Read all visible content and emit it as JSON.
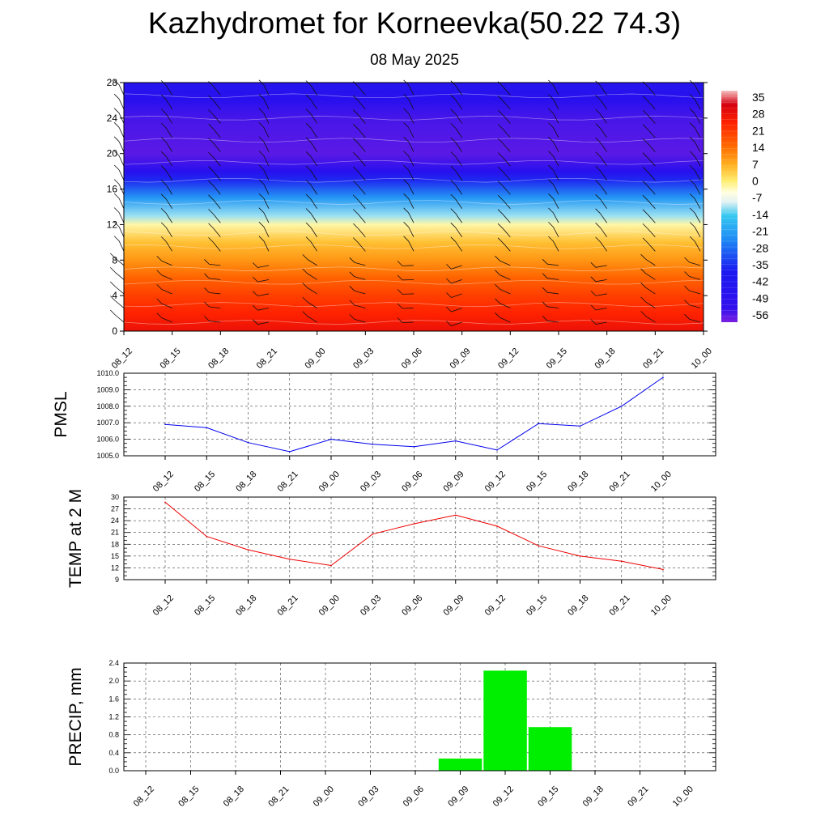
{
  "header": {
    "title": "Kazhydromet for Korneevka(50.22 74.3)",
    "subtitle": "08 May 2025"
  },
  "time_labels": [
    "08_12",
    "08_15",
    "08_18",
    "08_21",
    "09_00",
    "09_03",
    "09_06",
    "09_09",
    "09_12",
    "09_15",
    "09_18",
    "09_21",
    "10_00"
  ],
  "colors": {
    "pmsl_line": "#0000ee",
    "temp_line": "#ee0000",
    "precip_bar": "#00ee00"
  },
  "chart_data": [
    {
      "type": "heatmap",
      "title": "",
      "xlabel": "",
      "ylabel": "",
      "x": [
        "08_12",
        "08_15",
        "08_18",
        "08_21",
        "09_00",
        "09_03",
        "09_06",
        "09_09",
        "09_12",
        "09_15",
        "09_18",
        "09_21",
        "10_00"
      ],
      "yticks": [
        0,
        4,
        8,
        12,
        16,
        20,
        24,
        28
      ],
      "ylim": [
        0,
        28
      ],
      "colorbar_labels": [
        "35",
        "28",
        "21",
        "14",
        "7",
        "0",
        "-7",
        "-14",
        "-21",
        "-28",
        "-35",
        "-42",
        "-49",
        "-56"
      ],
      "colorbar_range": [
        -60,
        38
      ],
      "temperature_profile": [
        {
          "level": 0,
          "value": 28
        },
        {
          "level": 2,
          "value": 24
        },
        {
          "level": 4,
          "value": 20
        },
        {
          "level": 6,
          "value": 15
        },
        {
          "level": 8,
          "value": 9
        },
        {
          "level": 10,
          "value": 4
        },
        {
          "level": 12,
          "value": -5
        },
        {
          "level": 13,
          "value": -16
        },
        {
          "level": 15,
          "value": -28
        },
        {
          "level": 17,
          "value": -42
        },
        {
          "level": 18,
          "value": -52
        },
        {
          "level": 20,
          "value": -57
        },
        {
          "level": 22,
          "value": -56
        },
        {
          "level": 24,
          "value": -55
        },
        {
          "level": 26,
          "value": -52
        },
        {
          "level": 28,
          "value": -50
        }
      ],
      "overlay": "wind barbs",
      "grid": false
    },
    {
      "type": "line",
      "title": "",
      "ylabel": "PMSL",
      "xlabel": "",
      "x": [
        "08_12",
        "08_15",
        "08_18",
        "08_21",
        "09_00",
        "09_03",
        "09_06",
        "09_09",
        "09_12",
        "09_15",
        "09_18",
        "09_21",
        "10_00"
      ],
      "series": [
        {
          "values": [
            1006.9,
            1006.7,
            1005.8,
            1005.25,
            1006.0,
            1005.7,
            1005.55,
            1005.9,
            1005.35,
            1006.95,
            1006.8,
            1008.0,
            1009.75
          ]
        }
      ],
      "yticks": [
        "1005.0",
        "1006.0",
        "1007.0",
        "1008.0",
        "1009.0",
        "1010.0"
      ],
      "ylim": [
        1005.0,
        1010.0
      ],
      "grid": true
    },
    {
      "type": "line",
      "title": "",
      "ylabel": "TEMP at 2 M",
      "xlabel": "",
      "x": [
        "08_12",
        "08_15",
        "08_18",
        "08_21",
        "09_00",
        "09_03",
        "09_06",
        "09_09",
        "09_12",
        "09_15",
        "09_18",
        "09_21",
        "10_00"
      ],
      "series": [
        {
          "values": [
            28.7,
            20.0,
            16.6,
            14.2,
            12.6,
            20.6,
            23.2,
            25.4,
            22.6,
            17.6,
            15.0,
            13.7,
            11.6
          ]
        }
      ],
      "yticks": [
        "9",
        "12",
        "15",
        "18",
        "21",
        "24",
        "27",
        "30"
      ],
      "ylim": [
        9,
        30
      ],
      "grid": true
    },
    {
      "type": "bar",
      "title": "",
      "ylabel": "PRECIP, mm",
      "xlabel": "",
      "categories": [
        "08_12",
        "08_15",
        "08_18",
        "08_21",
        "09_00",
        "09_03",
        "09_06",
        "09_09",
        "09_12",
        "09_15",
        "09_18",
        "09_21",
        "10_00"
      ],
      "series": [
        {
          "values": [
            0,
            0,
            0,
            0,
            0,
            0,
            0,
            0.27,
            2.23,
            0.97,
            0,
            0,
            0
          ]
        }
      ],
      "yticks": [
        "0.0",
        "0.4",
        "0.8",
        "1.2",
        "1.6",
        "2.0",
        "2.4"
      ],
      "ylim": [
        0,
        2.4
      ],
      "grid": true
    }
  ]
}
